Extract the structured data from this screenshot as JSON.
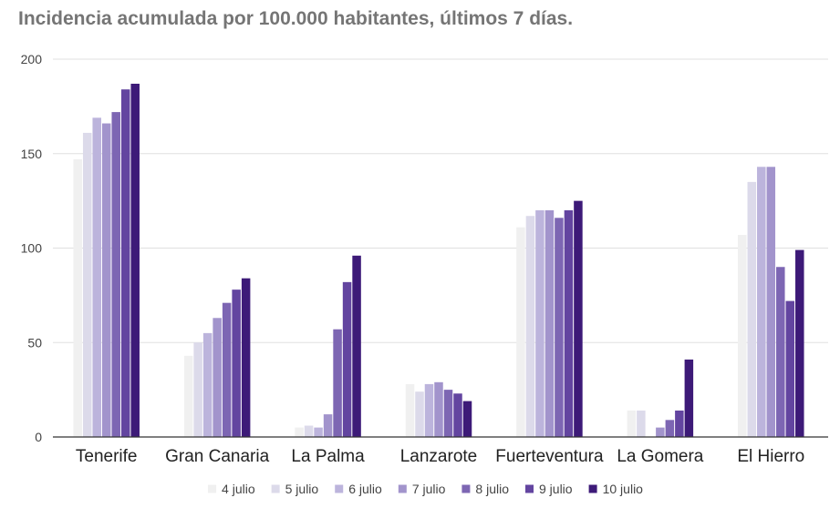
{
  "chart_data": {
    "type": "bar",
    "title": "Incidencia acumulada por 100.000 habitantes, últimos 7 días.",
    "xlabel": "",
    "ylabel": "",
    "ylim": [
      0,
      200
    ],
    "yticks": [
      "0",
      "50",
      "100",
      "150",
      "200"
    ],
    "grid": true,
    "legend_position": "bottom",
    "categories": [
      "Tenerife",
      "Gran Canaria",
      "La Palma",
      "Lanzarote",
      "Fuerteventura",
      "La Gomera",
      "El Hierro"
    ],
    "series": [
      {
        "name": "4 julio",
        "color": "#f0f0f0",
        "values": [
          147,
          43,
          5,
          28,
          111,
          14,
          107
        ]
      },
      {
        "name": "5 julio",
        "color": "#dcdaea",
        "values": [
          161,
          50,
          6,
          24,
          117,
          14,
          135
        ]
      },
      {
        "name": "6 julio",
        "color": "#bcb4dc",
        "values": [
          169,
          55,
          5,
          28,
          120,
          0,
          143
        ]
      },
      {
        "name": "7 julio",
        "color": "#a294cc",
        "values": [
          166,
          63,
          12,
          29,
          120,
          5,
          143
        ]
      },
      {
        "name": "8 julio",
        "color": "#7d66b3",
        "values": [
          172,
          71,
          57,
          25,
          116,
          9,
          90
        ]
      },
      {
        "name": "9 julio",
        "color": "#6345a0",
        "values": [
          184,
          78,
          82,
          23,
          120,
          14,
          72
        ]
      },
      {
        "name": "10 julio",
        "color": "#3d1a78",
        "values": [
          187,
          84,
          96,
          19,
          125,
          41,
          99
        ]
      }
    ]
  }
}
